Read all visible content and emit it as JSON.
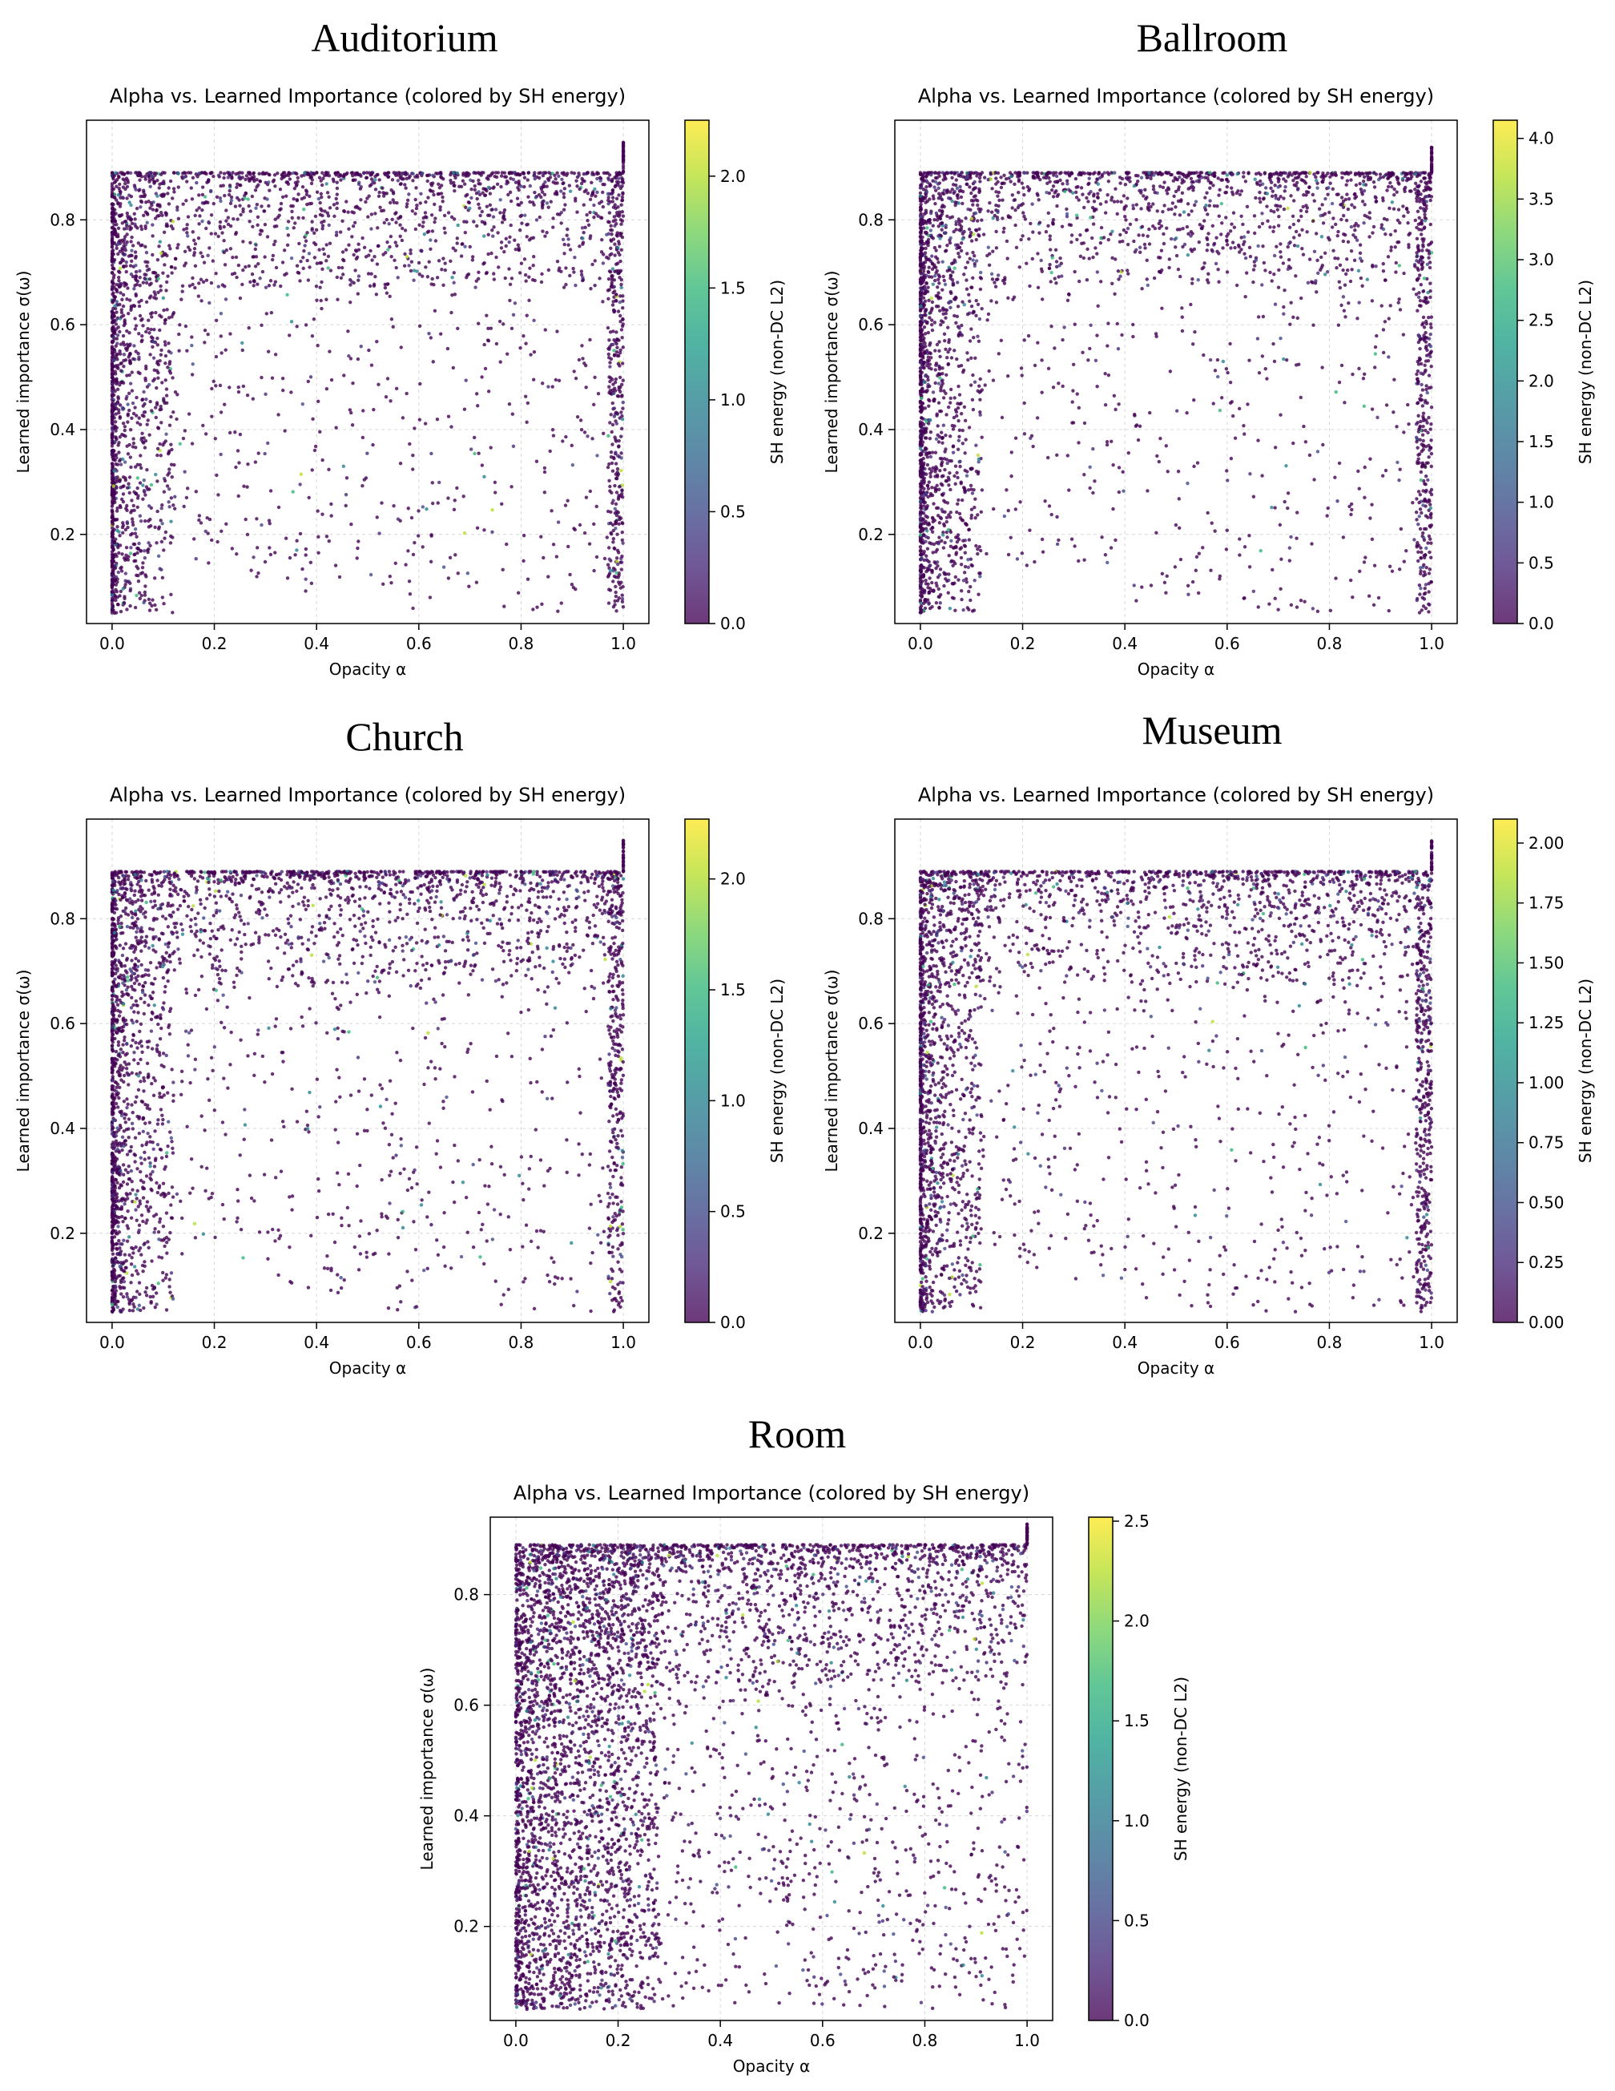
{
  "figure": {
    "common": {
      "plot_title": "Alpha vs. Learned Importance (colored by SH energy)",
      "xlabel": "Opacity α",
      "ylabel": "Learned importance σ(ω)",
      "colorbar_label": "SH energy (non-DC L2)",
      "colormap": "viridis",
      "colors": {
        "point_main": "#440154",
        "point_alt": "#3b528b",
        "point_mid": "#21918c",
        "point_high": "#fde725"
      }
    }
  },
  "chart_data": [
    {
      "type": "scatter",
      "scene": "Auditorium",
      "title": "Alpha vs. Learned Importance (colored by SH energy)",
      "xlabel": "Opacity α",
      "ylabel": "Learned importance σ(ω)",
      "xlim": [
        -0.05,
        1.05
      ],
      "ylim": [
        0.03,
        0.99
      ],
      "xticks": [
        "0.0",
        "0.2",
        "0.4",
        "0.6",
        "0.8",
        "1.0"
      ],
      "yticks": [
        "0.2",
        "0.4",
        "0.6",
        "0.8"
      ],
      "colorbar": {
        "label": "SH energy (non-DC L2)",
        "range": [
          0,
          2.25
        ],
        "ticks": [
          "0.0",
          "0.5",
          "1.0",
          "1.5",
          "2.0"
        ]
      },
      "grid": true,
      "summary": {
        "importance_ceiling": 0.89,
        "importance_floor": 0.05,
        "max_importance_at_alpha_1": 0.95,
        "density": "dense along alpha≈0 and importance≈0.85, sparse in lower-right"
      }
    },
    {
      "type": "scatter",
      "scene": "Ballroom",
      "title": "Alpha vs. Learned Importance (colored by SH energy)",
      "xlabel": "Opacity α",
      "ylabel": "Learned importance σ(ω)",
      "xlim": [
        -0.05,
        1.05
      ],
      "ylim": [
        0.03,
        0.99
      ],
      "xticks": [
        "0.0",
        "0.2",
        "0.4",
        "0.6",
        "0.8",
        "1.0"
      ],
      "yticks": [
        "0.2",
        "0.4",
        "0.6",
        "0.8"
      ],
      "colorbar": {
        "label": "SH energy (non-DC L2)",
        "range": [
          0,
          4.15
        ],
        "ticks": [
          "0.0",
          "0.5",
          "1.0",
          "1.5",
          "2.0",
          "2.5",
          "3.0",
          "3.5",
          "4.0"
        ]
      },
      "grid": true,
      "summary": {
        "importance_ceiling": 0.89,
        "importance_floor": 0.05,
        "max_importance_at_alpha_1": 0.94,
        "density": "very dense near alpha≈0, sparse scatter at mid/high alpha"
      }
    },
    {
      "type": "scatter",
      "scene": "Church",
      "title": "Alpha vs. Learned Importance (colored by SH energy)",
      "xlabel": "Opacity α",
      "ylabel": "Learned importance σ(ω)",
      "xlim": [
        -0.05,
        1.05
      ],
      "ylim": [
        0.03,
        0.99
      ],
      "xticks": [
        "0.0",
        "0.2",
        "0.4",
        "0.6",
        "0.8",
        "1.0"
      ],
      "yticks": [
        "0.2",
        "0.4",
        "0.6",
        "0.8"
      ],
      "colorbar": {
        "label": "SH energy (non-DC L2)",
        "range": [
          0,
          2.27
        ],
        "ticks": [
          "0.0",
          "0.5",
          "1.0",
          "1.5",
          "2.0"
        ]
      },
      "grid": true,
      "summary": {
        "importance_ceiling": 0.89,
        "importance_floor": 0.05,
        "max_importance_at_alpha_1": 0.95,
        "density": "dense band at top, dense near alpha≈0, moderate scatter elsewhere"
      }
    },
    {
      "type": "scatter",
      "scene": "Museum",
      "title": "Alpha vs. Learned Importance (colored by SH energy)",
      "xlabel": "Opacity α",
      "ylabel": "Learned importance σ(ω)",
      "xlim": [
        -0.05,
        1.05
      ],
      "ylim": [
        0.03,
        0.99
      ],
      "xticks": [
        "0.0",
        "0.2",
        "0.4",
        "0.6",
        "0.8",
        "1.0"
      ],
      "yticks": [
        "0.2",
        "0.4",
        "0.6",
        "0.8"
      ],
      "colorbar": {
        "label": "SH energy (non-DC L2)",
        "range": [
          0,
          2.1
        ],
        "ticks": [
          "0.00",
          "0.25",
          "0.50",
          "0.75",
          "1.00",
          "1.25",
          "1.50",
          "1.75",
          "2.00"
        ]
      },
      "grid": true,
      "summary": {
        "importance_ceiling": 0.89,
        "importance_floor": 0.05,
        "max_importance_at_alpha_1": 0.95,
        "density": "dense top band and alpha≈0 column, sparse lower-right"
      }
    },
    {
      "type": "scatter",
      "scene": "Room",
      "title": "Alpha vs. Learned Importance (colored by SH energy)",
      "xlabel": "Opacity α",
      "ylabel": "Learned importance σ(ω)",
      "xlim": [
        -0.05,
        1.05
      ],
      "ylim": [
        0.03,
        0.94
      ],
      "xticks": [
        "0.0",
        "0.2",
        "0.4",
        "0.6",
        "0.8",
        "1.0"
      ],
      "yticks": [
        "0.2",
        "0.4",
        "0.6",
        "0.8"
      ],
      "colorbar": {
        "label": "SH energy (non-DC L2)",
        "range": [
          0,
          2.52
        ],
        "ticks": [
          "0.0",
          "0.5",
          "1.0",
          "1.5",
          "2.0",
          "2.5"
        ]
      },
      "grid": true,
      "summary": {
        "importance_ceiling": 0.89,
        "importance_floor": 0.05,
        "max_importance_at_alpha_1": 0.93,
        "density": "nearly uniform dense fill, densest at alpha<0.25"
      }
    }
  ]
}
